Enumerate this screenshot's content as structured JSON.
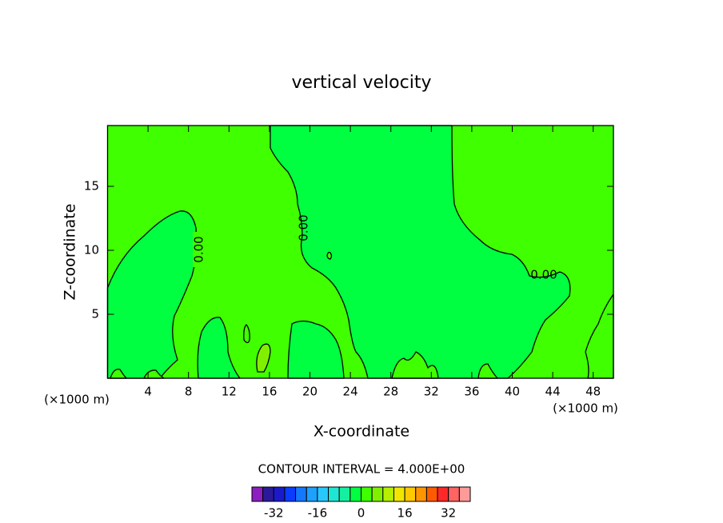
{
  "chart_data": {
    "type": "contour",
    "title": "vertical velocity",
    "x_label": "X-coordinate",
    "y_label": "Z-coordinate",
    "x_unit": "(×1000 m)",
    "xlim": [
      0,
      50
    ],
    "xticks": [
      4,
      8,
      12,
      16,
      20,
      24,
      28,
      32,
      36,
      40,
      44,
      48
    ],
    "ylim": [
      0,
      19.75
    ],
    "yticks": [
      5,
      10,
      15
    ],
    "contour_labels": [
      "0.00",
      "0.00",
      "0.00"
    ],
    "contour_interval": "CONTOUR INTERVAL = 4.000E+00",
    "colorbar": {
      "lim": [
        -40,
        40
      ],
      "ticks": [
        -32,
        -16,
        0,
        16,
        32
      ],
      "colors": [
        "#8b1fbf",
        "#2a1a9a",
        "#1a1acc",
        "#0a3cff",
        "#1478ff",
        "#1ea0ff",
        "#28c8ff",
        "#1ee6d2",
        "#14f0a0",
        "#00ff40",
        "#40ff00",
        "#80f000",
        "#b4f000",
        "#f0e600",
        "#ffc800",
        "#ff9600",
        "#ff5a00",
        "#ff2828",
        "#ff6464",
        "#ff9a9a"
      ]
    }
  }
}
